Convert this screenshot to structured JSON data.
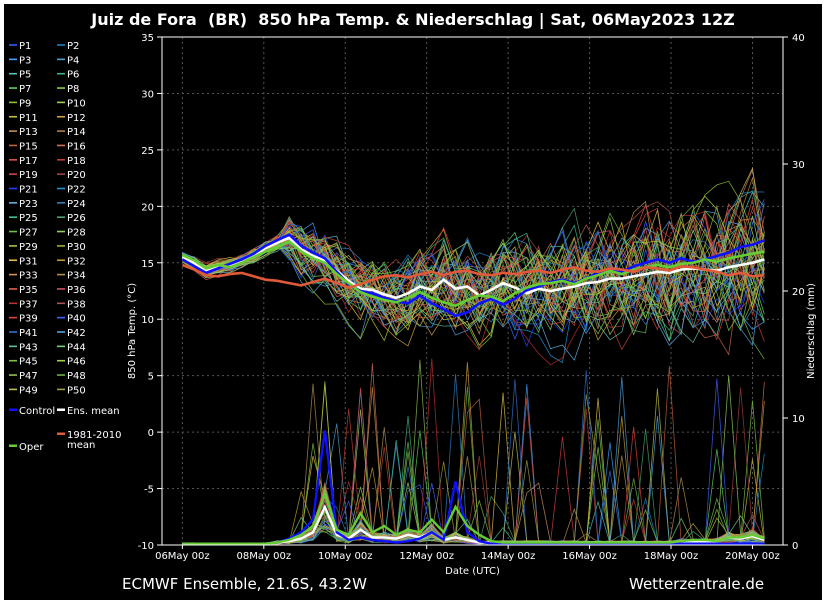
{
  "title": "Juiz de Fora  (BR)  850 hPa Temp. & Niederschlag | Sat, 06May2023 12Z",
  "footer": {
    "left": "ECMWF Ensemble, 21.6S, 43.2W",
    "right": "Wetterzentrale.de"
  },
  "colors": {
    "background": "#000000",
    "control": "#1010ff",
    "ens_mean": "#ffffff",
    "climate_mean": "#e05a3a",
    "oper": "#66cc33"
  },
  "legend": {
    "members": [
      "P1",
      "P2",
      "P3",
      "P4",
      "P5",
      "P6",
      "P7",
      "P8",
      "P9",
      "P10",
      "P11",
      "P12",
      "P13",
      "P14",
      "P15",
      "P16",
      "P17",
      "P18",
      "P19",
      "P20",
      "P21",
      "P22",
      "P23",
      "P24",
      "P25",
      "P26",
      "P27",
      "P28",
      "P29",
      "P30",
      "P31",
      "P32",
      "P33",
      "P34",
      "P35",
      "P36",
      "P37",
      "P38",
      "P39",
      "P40",
      "P41",
      "P42",
      "P43",
      "P44",
      "P45",
      "P46",
      "P47",
      "P48",
      "P49",
      "P50"
    ],
    "member_colors": [
      "#3060ff",
      "#2080c8",
      "#40a0ff",
      "#4aa0d0",
      "#50c0c0",
      "#40b080",
      "#60d060",
      "#80d040",
      "#90c030",
      "#a0d050",
      "#c0c040",
      "#d0a040",
      "#c09050",
      "#b08040",
      "#c06040",
      "#d07050",
      "#e05040",
      "#c04030",
      "#d04040",
      "#a04040",
      "#2040ff",
      "#2090d0",
      "#60b0e0",
      "#3080c0",
      "#40c0a0",
      "#50a070",
      "#70c050",
      "#90d060",
      "#b0c040",
      "#a0b030",
      "#e0c040",
      "#c0a030",
      "#d09060",
      "#b09050",
      "#e06050",
      "#d05060",
      "#c03030",
      "#b05050",
      "#e04040",
      "#4060ff",
      "#3070d0",
      "#50a0e0",
      "#60c0a0",
      "#70d080",
      "#80c040",
      "#a0d040",
      "#90c050",
      "#70b040",
      "#c0c050",
      "#a0a040"
    ],
    "control": "Control",
    "ens_mean": "Ens. mean",
    "climate_mean": "1981-2010\nmean",
    "oper": "Oper"
  },
  "chart_data": {
    "type": "line",
    "xlabel": "Date (UTC)",
    "ylabel_left": "850 hPa Temp. (°C)",
    "ylabel_right": "Niederschlag (mm)",
    "ylim_left": [
      -10,
      35
    ],
    "ylim_right": [
      0,
      40
    ],
    "yticks_left": [
      -10,
      -5,
      0,
      5,
      10,
      15,
      20,
      25,
      30,
      35
    ],
    "yticks_right": [
      0,
      10,
      20,
      30,
      40
    ],
    "x_range_hours": [
      -12,
      354
    ],
    "x_ticks": [
      {
        "hours": 0,
        "label": "06May 00z"
      },
      {
        "hours": 48,
        "label": "08May 00z"
      },
      {
        "hours": 96,
        "label": "10May 00z"
      },
      {
        "hours": 144,
        "label": "12May 00z"
      },
      {
        "hours": 192,
        "label": "14May 00z"
      },
      {
        "hours": 240,
        "label": "16May 00z"
      },
      {
        "hours": 288,
        "label": "18May 00z"
      },
      {
        "hours": 336,
        "label": "20May 00z"
      }
    ],
    "grid": true,
    "series": [
      {
        "name": "Ens. mean",
        "color": "#ffffff",
        "temperature": [
          15.5,
          15.0,
          14.3,
          14.6,
          14.8,
          15.1,
          15.6,
          16.3,
          16.8,
          17.2,
          16.2,
          15.6,
          15.2,
          14.3,
          13.4,
          12.7,
          12.6,
          12.2,
          11.9,
          12.3,
          12.9,
          12.6,
          13.5,
          12.7,
          12.9,
          12.1,
          12.6,
          13.2,
          12.8,
          12.3,
          12.7,
          12.5,
          12.7,
          12.9,
          13.2,
          13.3,
          13.6,
          13.6,
          13.8,
          14.0,
          14.2,
          14.1,
          14.4,
          14.5,
          14.4,
          14.3,
          14.6,
          14.8,
          15.0,
          15.3
        ],
        "precipitation": [
          0.1,
          0.1,
          0.1,
          0.1,
          0.1,
          0.1,
          0.1,
          0.1,
          0.2,
          0.3,
          0.5,
          1.0,
          3.0,
          0.8,
          0.5,
          1.2,
          0.6,
          0.6,
          0.5,
          0.8,
          0.6,
          1.0,
          0.4,
          0.6,
          0.4,
          0.2,
          0.2,
          0.2,
          0.2,
          0.2,
          0.2,
          0.2,
          0.2,
          0.2,
          0.2,
          0.2,
          0.2,
          0.2,
          0.2,
          0.2,
          0.2,
          0.2,
          0.3,
          0.3,
          0.3,
          0.3,
          0.6,
          0.5,
          0.7,
          0.4
        ]
      },
      {
        "name": "Control",
        "color": "#1010ff",
        "temperature": [
          15.3,
          14.7,
          14.1,
          14.5,
          14.9,
          15.3,
          15.8,
          16.5,
          17.0,
          17.5,
          16.5,
          15.9,
          15.4,
          14.2,
          13.1,
          12.5,
          12.3,
          11.9,
          11.6,
          11.4,
          12.1,
          11.4,
          10.9,
          10.3,
          10.6,
          11.4,
          11.8,
          11.3,
          11.8,
          12.6,
          12.9,
          13.3,
          13.5,
          13.2,
          13.6,
          14.1,
          14.5,
          14.2,
          14.7,
          15.0,
          15.3,
          15.0,
          15.4,
          15.1,
          15.3,
          15.6,
          15.9,
          16.4,
          16.6,
          17.0
        ],
        "precipitation": [
          0.1,
          0.1,
          0.1,
          0.1,
          0.1,
          0.1,
          0.1,
          0.1,
          0.2,
          0.5,
          1.0,
          2.0,
          9.0,
          1.0,
          0.4,
          0.6,
          0.4,
          0.3,
          0.2,
          0.3,
          0.5,
          1.0,
          0.4,
          5.0,
          1.0,
          0.3,
          0.1,
          0.1,
          0.1,
          0.1,
          0.1,
          0.1,
          0.1,
          0.1,
          0.1,
          0.1,
          0.1,
          0.1,
          0.1,
          0.1,
          0.1,
          0.1,
          0.1,
          0.1,
          0.1,
          0.1,
          0.1,
          0.1,
          0.1,
          0.1
        ]
      },
      {
        "name": "Oper",
        "color": "#66cc33",
        "temperature": [
          15.7,
          15.2,
          14.5,
          14.8,
          14.6,
          15.0,
          15.5,
          16.0,
          16.4,
          16.9,
          16.0,
          15.4,
          15.0,
          14.0,
          13.2,
          12.4,
          12.0,
          11.7,
          11.5,
          11.9,
          12.4,
          11.9,
          11.5,
          11.2,
          11.7,
          12.1,
          12.0,
          11.6,
          12.3,
          12.8,
          13.1,
          13.2,
          13.4,
          13.1,
          13.6,
          13.9,
          14.3,
          14.0,
          14.4,
          14.6,
          14.8,
          14.6,
          14.9,
          15.0,
          15.3,
          15.1,
          15.4,
          15.6,
          15.8,
          16.0
        ],
        "precipitation": [
          0.1,
          0.1,
          0.1,
          0.1,
          0.1,
          0.1,
          0.1,
          0.1,
          0.2,
          0.4,
          0.8,
          1.5,
          4.0,
          1.2,
          0.8,
          2.5,
          1.0,
          1.5,
          0.8,
          1.2,
          1.0,
          2.0,
          1.0,
          3.0,
          1.5,
          0.8,
          0.3,
          0.2,
          0.2,
          0.2,
          0.2,
          0.2,
          0.2,
          0.2,
          0.2,
          0.2,
          0.2,
          0.2,
          0.2,
          0.2,
          0.2,
          0.2,
          0.3,
          0.4,
          0.4,
          0.3,
          0.6,
          0.6,
          0.8,
          0.5
        ]
      },
      {
        "name": "1981-2010 mean",
        "color": "#e05a3a",
        "temperature": [
          14.8,
          14.4,
          13.9,
          13.8,
          14.0,
          14.1,
          13.8,
          13.5,
          13.4,
          13.2,
          13.0,
          13.3,
          13.6,
          13.2,
          12.8,
          13.1,
          13.5,
          13.8,
          13.9,
          13.7,
          14.0,
          14.2,
          13.9,
          14.2,
          14.3,
          14.0,
          13.9,
          14.1,
          14.0,
          14.2,
          14.3,
          14.1,
          14.4,
          14.6,
          14.3,
          14.2,
          14.5,
          14.4,
          14.2,
          14.6,
          14.5,
          14.3,
          14.7,
          14.6,
          14.4,
          14.2,
          13.9,
          14.1,
          13.8,
          13.9
        ]
      }
    ]
  }
}
